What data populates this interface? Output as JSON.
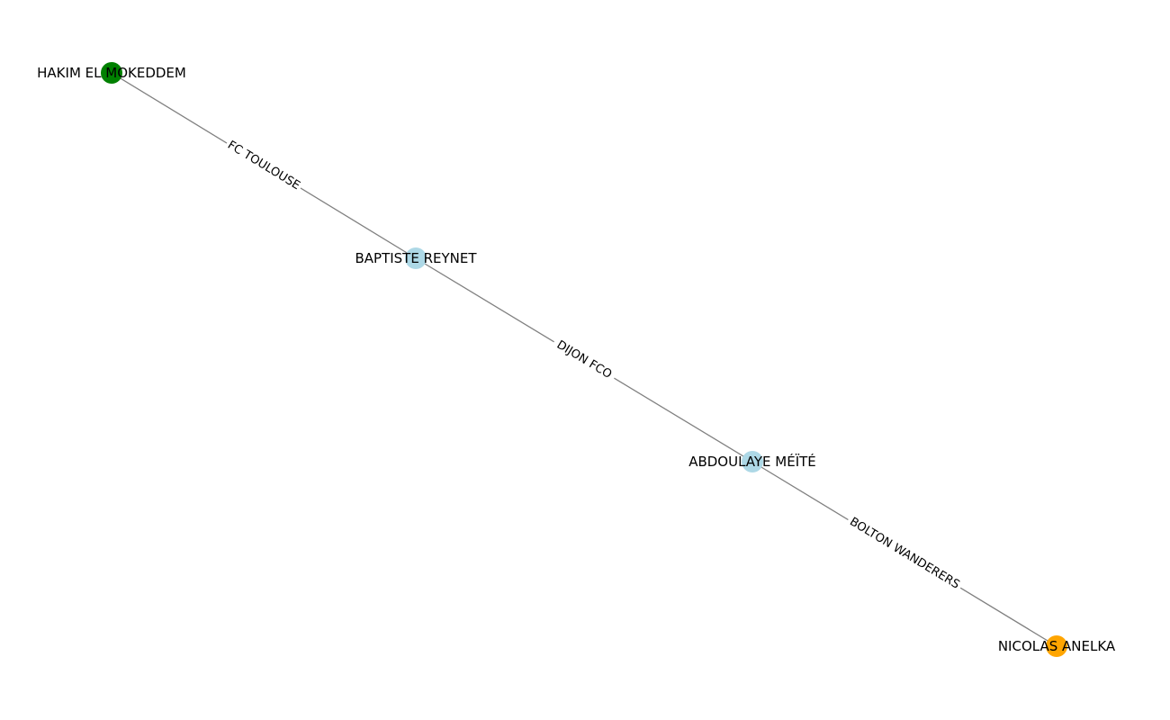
{
  "graph": {
    "nodes": [
      {
        "id": "hakim",
        "label": "HAKIM EL MOKEDDEM",
        "color": "#008000"
      },
      {
        "id": "baptiste",
        "label": "BAPTISTE REYNET",
        "color": "#add8e6"
      },
      {
        "id": "abdoulaye",
        "label": "ABDOULAYE MÉÏTÉ",
        "color": "#add8e6"
      },
      {
        "id": "nicolas",
        "label": "NICOLAS ANELKA",
        "color": "#ffa500"
      }
    ],
    "edges": [
      {
        "source": "hakim",
        "target": "baptiste",
        "label": "FC TOULOUSE"
      },
      {
        "source": "baptiste",
        "target": "abdoulaye",
        "label": "DIJON FCO"
      },
      {
        "source": "abdoulaye",
        "target": "nicolas",
        "label": "BOLTON WANDERERS"
      }
    ],
    "edge_color": "#808080"
  }
}
